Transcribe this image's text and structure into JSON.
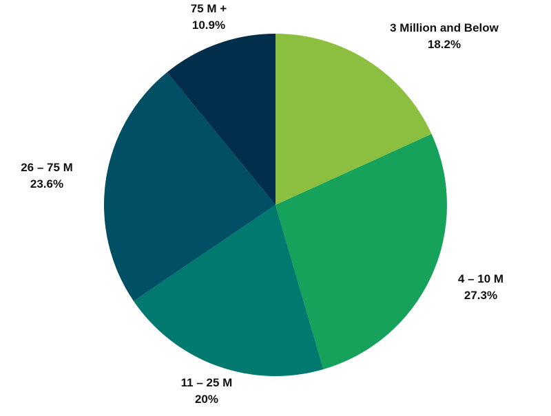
{
  "chart_data": {
    "type": "pie",
    "title": "",
    "categories": [
      "3 Million and Below",
      "4 – 10 M",
      "11 – 25 M",
      "26 – 75 M",
      "75 M +"
    ],
    "values": [
      18.2,
      27.3,
      20,
      23.6,
      10.9
    ],
    "value_labels": [
      "18.2%",
      "27.3%",
      "20%",
      "23.6%",
      "10.9%"
    ],
    "unit": "%",
    "start_angle": "12 o'clock",
    "direction": "clockwise",
    "legend": "none (labels next to slices)",
    "colors": [
      "#8cbe3f",
      "#17a25c",
      "#007a6e",
      "#004f65",
      "#012e4b"
    ]
  }
}
